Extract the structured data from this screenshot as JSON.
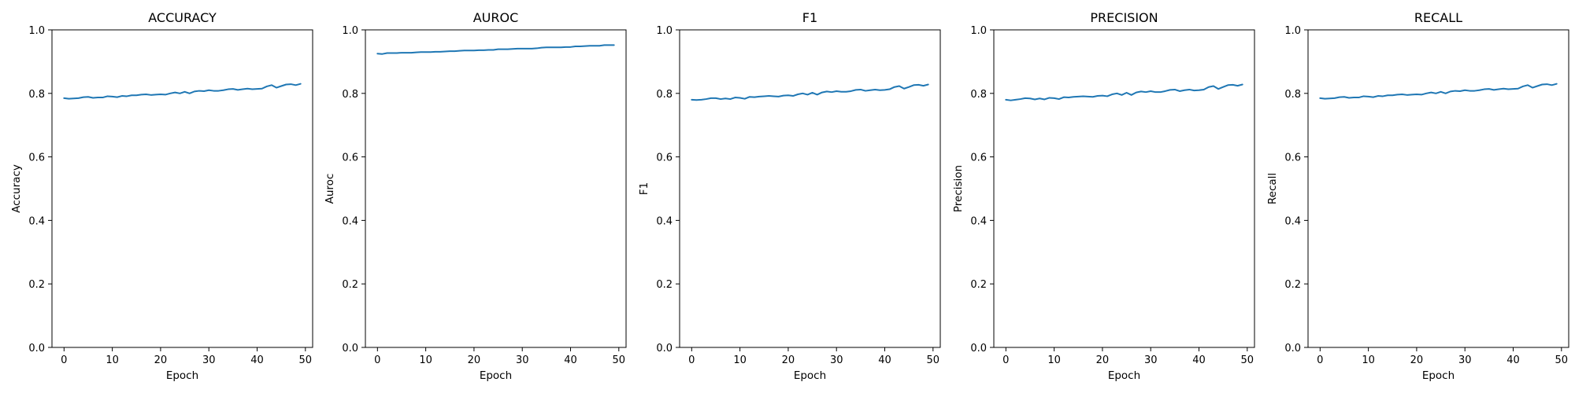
{
  "chart_data": [
    {
      "type": "line",
      "title": "ACCURACY",
      "xlabel": "Epoch",
      "ylabel": "Accuracy",
      "xlim": [
        -2.5,
        51.5
      ],
      "ylim": [
        0,
        1
      ],
      "xticks": [
        0,
        10,
        20,
        30,
        40,
        50
      ],
      "yticks": [
        0.0,
        0.2,
        0.4,
        0.6,
        0.8,
        1.0
      ],
      "grid": false,
      "color": "#1f77b4",
      "x": [
        0,
        1,
        2,
        3,
        4,
        5,
        6,
        7,
        8,
        9,
        10,
        11,
        12,
        13,
        14,
        15,
        16,
        17,
        18,
        19,
        20,
        21,
        22,
        23,
        24,
        25,
        26,
        27,
        28,
        29,
        30,
        31,
        32,
        33,
        34,
        35,
        36,
        37,
        38,
        39,
        40,
        41,
        42,
        43,
        44,
        45,
        46,
        47,
        48,
        49
      ],
      "values": [
        0.785,
        0.783,
        0.784,
        0.785,
        0.788,
        0.789,
        0.786,
        0.787,
        0.787,
        0.791,
        0.79,
        0.788,
        0.792,
        0.791,
        0.794,
        0.794,
        0.796,
        0.797,
        0.795,
        0.796,
        0.797,
        0.796,
        0.8,
        0.803,
        0.8,
        0.805,
        0.8,
        0.806,
        0.808,
        0.807,
        0.81,
        0.808,
        0.808,
        0.81,
        0.813,
        0.814,
        0.811,
        0.813,
        0.815,
        0.813,
        0.814,
        0.815,
        0.822,
        0.826,
        0.818,
        0.823,
        0.828,
        0.829,
        0.826,
        0.83
      ]
    },
    {
      "type": "line",
      "title": "AUROC",
      "xlabel": "Epoch",
      "ylabel": "Auroc",
      "xlim": [
        -2.5,
        51.5
      ],
      "ylim": [
        0,
        1
      ],
      "xticks": [
        0,
        10,
        20,
        30,
        40,
        50
      ],
      "yticks": [
        0.0,
        0.2,
        0.4,
        0.6,
        0.8,
        1.0
      ],
      "grid": false,
      "color": "#1f77b4",
      "x": [
        0,
        1,
        2,
        3,
        4,
        5,
        6,
        7,
        8,
        9,
        10,
        11,
        12,
        13,
        14,
        15,
        16,
        17,
        18,
        19,
        20,
        21,
        22,
        23,
        24,
        25,
        26,
        27,
        28,
        29,
        30,
        31,
        32,
        33,
        34,
        35,
        36,
        37,
        38,
        39,
        40,
        41,
        42,
        43,
        44,
        45,
        46,
        47,
        48,
        49
      ],
      "values": [
        0.925,
        0.924,
        0.927,
        0.927,
        0.927,
        0.928,
        0.928,
        0.928,
        0.929,
        0.93,
        0.93,
        0.93,
        0.931,
        0.931,
        0.932,
        0.933,
        0.933,
        0.934,
        0.935,
        0.935,
        0.935,
        0.936,
        0.936,
        0.937,
        0.937,
        0.939,
        0.939,
        0.939,
        0.94,
        0.941,
        0.941,
        0.941,
        0.941,
        0.942,
        0.944,
        0.945,
        0.945,
        0.945,
        0.945,
        0.946,
        0.946,
        0.948,
        0.948,
        0.949,
        0.95,
        0.95,
        0.95,
        0.952,
        0.952,
        0.952
      ]
    },
    {
      "type": "line",
      "title": "F1",
      "xlabel": "Epoch",
      "ylabel": "F1",
      "xlim": [
        -2.5,
        51.5
      ],
      "ylim": [
        0,
        1
      ],
      "xticks": [
        0,
        10,
        20,
        30,
        40,
        50
      ],
      "yticks": [
        0.0,
        0.2,
        0.4,
        0.6,
        0.8,
        1.0
      ],
      "grid": false,
      "color": "#1f77b4",
      "x": [
        0,
        1,
        2,
        3,
        4,
        5,
        6,
        7,
        8,
        9,
        10,
        11,
        12,
        13,
        14,
        15,
        16,
        17,
        18,
        19,
        20,
        21,
        22,
        23,
        24,
        25,
        26,
        27,
        28,
        29,
        30,
        31,
        32,
        33,
        34,
        35,
        36,
        37,
        38,
        39,
        40,
        41,
        42,
        43,
        44,
        45,
        46,
        47,
        48,
        49
      ],
      "values": [
        0.78,
        0.779,
        0.78,
        0.782,
        0.785,
        0.785,
        0.782,
        0.784,
        0.782,
        0.787,
        0.786,
        0.783,
        0.789,
        0.788,
        0.79,
        0.791,
        0.792,
        0.791,
        0.79,
        0.793,
        0.794,
        0.792,
        0.797,
        0.8,
        0.796,
        0.802,
        0.796,
        0.803,
        0.806,
        0.804,
        0.807,
        0.805,
        0.805,
        0.807,
        0.811,
        0.812,
        0.808,
        0.81,
        0.812,
        0.81,
        0.811,
        0.813,
        0.82,
        0.823,
        0.815,
        0.82,
        0.826,
        0.827,
        0.824,
        0.828
      ]
    },
    {
      "type": "line",
      "title": "PRECISION",
      "xlabel": "Epoch",
      "ylabel": "Precision",
      "xlim": [
        -2.5,
        51.5
      ],
      "ylim": [
        0,
        1
      ],
      "xticks": [
        0,
        10,
        20,
        30,
        40,
        50
      ],
      "yticks": [
        0.0,
        0.2,
        0.4,
        0.6,
        0.8,
        1.0
      ],
      "grid": false,
      "color": "#1f77b4",
      "x": [
        0,
        1,
        2,
        3,
        4,
        5,
        6,
        7,
        8,
        9,
        10,
        11,
        12,
        13,
        14,
        15,
        16,
        17,
        18,
        19,
        20,
        21,
        22,
        23,
        24,
        25,
        26,
        27,
        28,
        29,
        30,
        31,
        32,
        33,
        34,
        35,
        36,
        37,
        38,
        39,
        40,
        41,
        42,
        43,
        44,
        45,
        46,
        47,
        48,
        49
      ],
      "values": [
        0.78,
        0.778,
        0.78,
        0.782,
        0.785,
        0.784,
        0.781,
        0.784,
        0.781,
        0.786,
        0.785,
        0.782,
        0.788,
        0.787,
        0.789,
        0.79,
        0.791,
        0.79,
        0.789,
        0.792,
        0.793,
        0.791,
        0.797,
        0.8,
        0.795,
        0.802,
        0.795,
        0.803,
        0.806,
        0.804,
        0.807,
        0.804,
        0.804,
        0.807,
        0.811,
        0.812,
        0.807,
        0.81,
        0.812,
        0.809,
        0.81,
        0.812,
        0.82,
        0.823,
        0.814,
        0.82,
        0.826,
        0.827,
        0.824,
        0.828
      ]
    },
    {
      "type": "line",
      "title": "RECALL",
      "xlabel": "Epoch",
      "ylabel": "Recall",
      "xlim": [
        -2.5,
        51.5
      ],
      "ylim": [
        0,
        1
      ],
      "xticks": [
        0,
        10,
        20,
        30,
        40,
        50
      ],
      "yticks": [
        0.0,
        0.2,
        0.4,
        0.6,
        0.8,
        1.0
      ],
      "grid": false,
      "color": "#1f77b4",
      "x": [
        0,
        1,
        2,
        3,
        4,
        5,
        6,
        7,
        8,
        9,
        10,
        11,
        12,
        13,
        14,
        15,
        16,
        17,
        18,
        19,
        20,
        21,
        22,
        23,
        24,
        25,
        26,
        27,
        28,
        29,
        30,
        31,
        32,
        33,
        34,
        35,
        36,
        37,
        38,
        39,
        40,
        41,
        42,
        43,
        44,
        45,
        46,
        47,
        48,
        49
      ],
      "values": [
        0.785,
        0.783,
        0.784,
        0.785,
        0.788,
        0.789,
        0.786,
        0.787,
        0.787,
        0.791,
        0.79,
        0.788,
        0.792,
        0.791,
        0.794,
        0.794,
        0.796,
        0.797,
        0.795,
        0.796,
        0.797,
        0.796,
        0.8,
        0.803,
        0.8,
        0.805,
        0.8,
        0.806,
        0.808,
        0.807,
        0.81,
        0.808,
        0.808,
        0.81,
        0.813,
        0.814,
        0.811,
        0.813,
        0.815,
        0.813,
        0.814,
        0.815,
        0.822,
        0.826,
        0.818,
        0.823,
        0.828,
        0.829,
        0.826,
        0.83
      ]
    }
  ]
}
